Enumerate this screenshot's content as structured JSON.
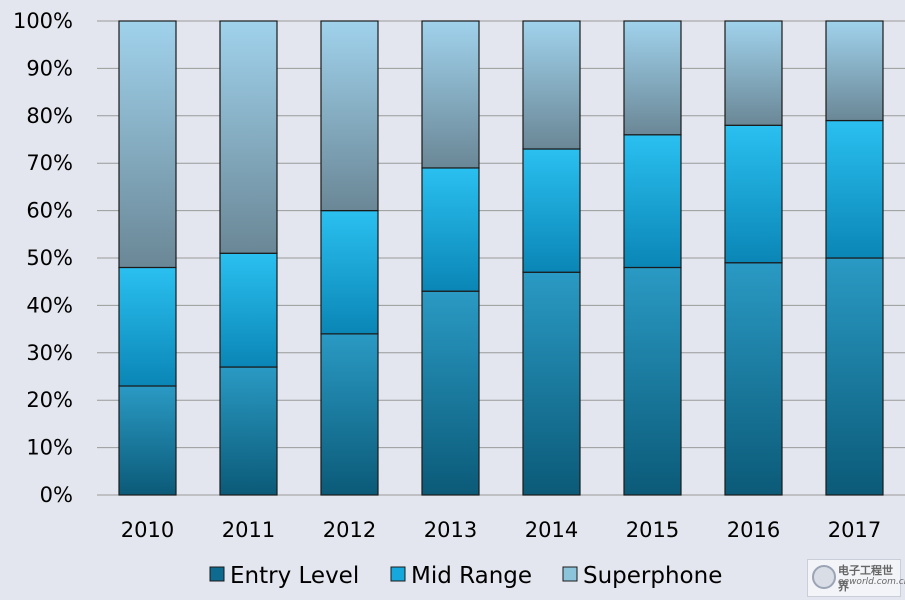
{
  "chart_data": {
    "type": "bar",
    "stacked": true,
    "categories": [
      "2010",
      "2011",
      "2012",
      "2013",
      "2014",
      "2015",
      "2016",
      "2017"
    ],
    "series": [
      {
        "name": "Entry Level",
        "values": [
          23,
          27,
          34,
          43,
          47,
          48,
          49,
          50
        ]
      },
      {
        "name": "Mid Range",
        "values": [
          25,
          24,
          26,
          26,
          26,
          28,
          29,
          29
        ]
      },
      {
        "name": "Superphone",
        "values": [
          52,
          49,
          40,
          31,
          27,
          24,
          22,
          21
        ]
      }
    ],
    "yticks": [
      "0%",
      "10%",
      "20%",
      "30%",
      "40%",
      "50%",
      "60%",
      "70%",
      "80%",
      "90%",
      "100%"
    ],
    "ylim": [
      0,
      100
    ],
    "grid": true,
    "legend_position": "bottom",
    "colors": {
      "Entry Level": "#1e8cb5",
      "Mid Range": "#1cb4e6",
      "Superphone": "#8fbfd6",
      "background": "#e3e6ee",
      "gridline": "#9a9a9a"
    }
  },
  "watermark": {
    "text_cn": "电子工程世界",
    "url": "eeworld.com.cn"
  }
}
